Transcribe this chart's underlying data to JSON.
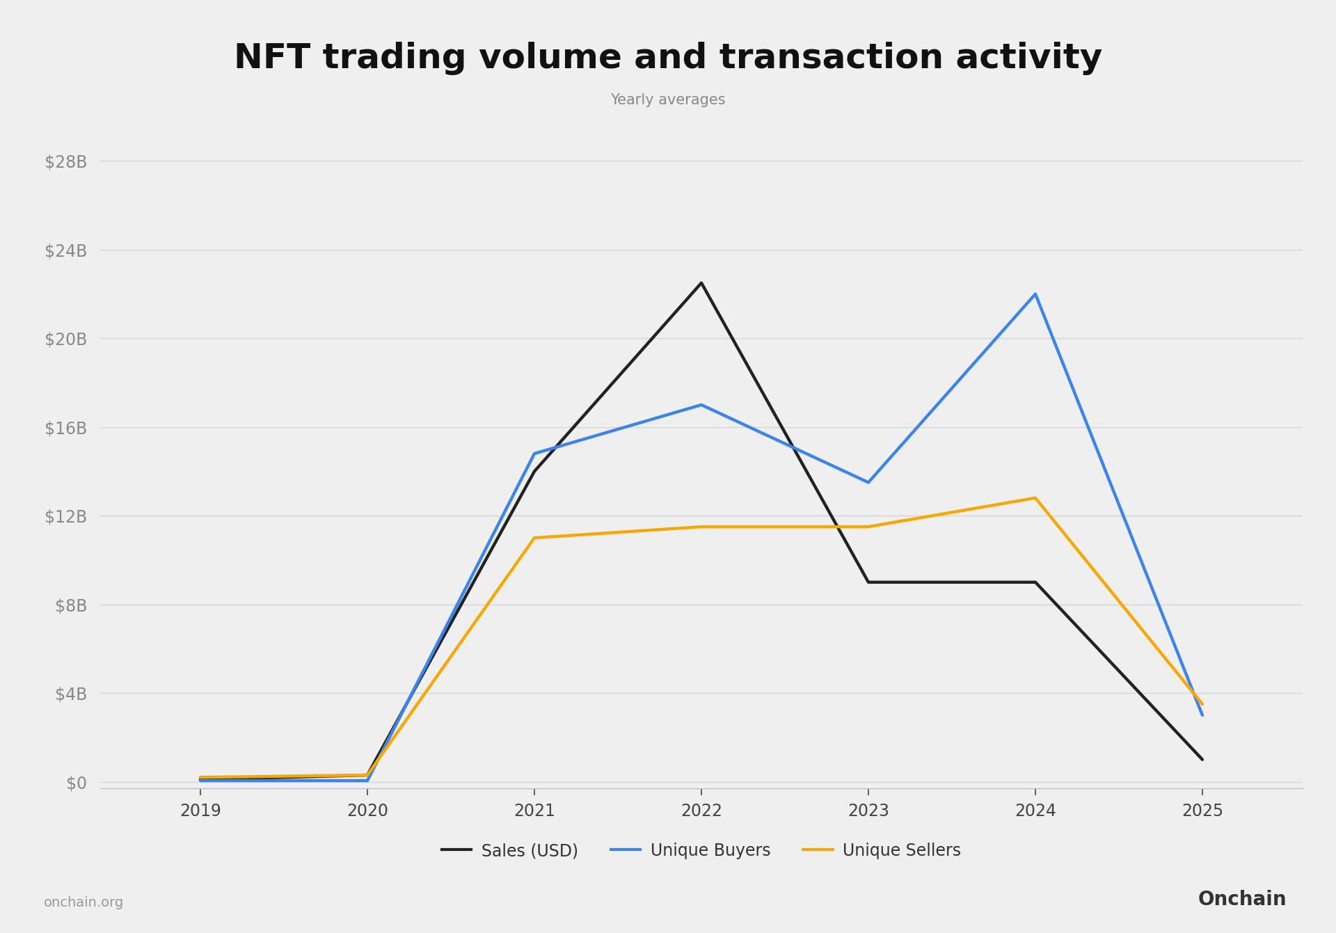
{
  "title": "NFT trading volume and transaction activity",
  "subtitle": "Yearly averages",
  "x_labels": [
    2019,
    2020,
    2021,
    2022,
    2023,
    2024,
    2025
  ],
  "sales_usd": [
    0.1,
    0.3,
    14.0,
    22.5,
    9.0,
    9.0,
    1.0
  ],
  "unique_buyers": [
    0.05,
    0.05,
    14.8,
    17.0,
    13.5,
    22.0,
    3.0
  ],
  "unique_sellers": [
    0.2,
    0.3,
    11.0,
    11.5,
    11.5,
    12.8,
    3.5
  ],
  "sales_color": "#222222",
  "buyers_color": "#3d84e8",
  "sellers_color": "#f5a800",
  "background_color": "#efefef",
  "grid_color": "#d5d5d5",
  "yticks": [
    0,
    4,
    8,
    12,
    16,
    20,
    24,
    28
  ],
  "ylim": [
    -0.3,
    30
  ],
  "xlim": [
    2018.4,
    2025.6
  ],
  "line_width": 3.2,
  "title_fontsize": 36,
  "subtitle_fontsize": 15,
  "tick_fontsize": 17,
  "legend_fontsize": 17,
  "ytick_color": "#888888",
  "xtick_color": "#444444",
  "watermark_left": "onchain.org",
  "watermark_right": "Onchain",
  "legend_labels": [
    "Sales (USD)",
    "Unique Buyers",
    "Unique Sellers"
  ]
}
